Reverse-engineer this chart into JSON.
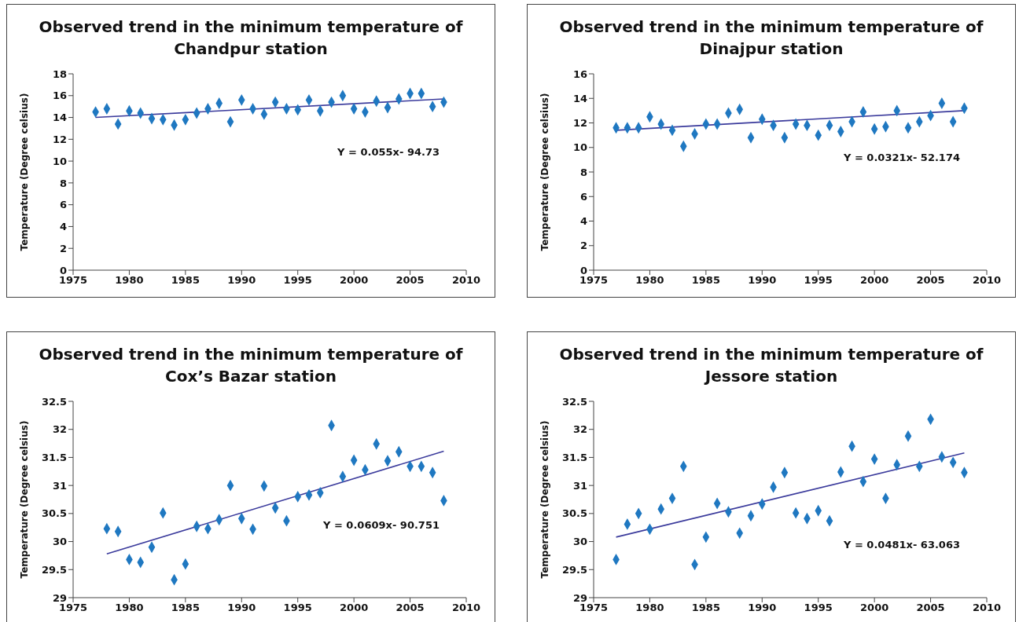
{
  "chart_data": [
    {
      "type": "scatter",
      "title": "Observed trend in the minimum temperature of Chandpur station",
      "ylabel": "Temperature (Degree celsius)",
      "xlim": [
        1975,
        2010
      ],
      "xticks": [
        1975,
        1980,
        1985,
        1990,
        1995,
        2000,
        2005,
        2010
      ],
      "ylim": [
        0,
        18
      ],
      "yticks": [
        0,
        2,
        4,
        6,
        8,
        10,
        12,
        14,
        16,
        18
      ],
      "grid": false,
      "annotations": [
        "Y = 0.055x- 94.73"
      ],
      "series": [
        {
          "marker": "diamond",
          "color": "#1f78c1",
          "x": [
            1977,
            1978,
            1979,
            1980,
            1981,
            1982,
            1983,
            1984,
            1985,
            1986,
            1987,
            1988,
            1989,
            1990,
            1991,
            1992,
            1993,
            1994,
            1995,
            1996,
            1997,
            1998,
            1999,
            2000,
            2001,
            2002,
            2003,
            2004,
            2005,
            2006,
            2007,
            2008
          ],
          "values": [
            14.5,
            14.8,
            13.4,
            14.6,
            14.4,
            13.9,
            13.8,
            13.3,
            13.8,
            14.4,
            14.8,
            15.3,
            13.6,
            15.6,
            14.8,
            14.3,
            15.4,
            14.8,
            14.7,
            15.6,
            14.6,
            15.4,
            16.0,
            14.8,
            14.5,
            15.5,
            14.9,
            15.7,
            16.2,
            16.2,
            15.0,
            15.4
          ]
        },
        {
          "type": "line",
          "marker": "none",
          "color": "#3b3b9c",
          "x": [
            1977,
            2008
          ],
          "values": [
            14.0,
            15.7
          ]
        }
      ]
    },
    {
      "type": "scatter",
      "title": "Observed trend in the minimum temperature of Dinajpur station",
      "ylabel": "Temperature (Degree celsius)",
      "xlim": [
        1975,
        2010
      ],
      "xticks": [
        1975,
        1980,
        1985,
        1990,
        1995,
        2000,
        2005,
        2010
      ],
      "ylim": [
        0,
        16
      ],
      "yticks": [
        0,
        2,
        4,
        6,
        8,
        10,
        12,
        14,
        16
      ],
      "grid": false,
      "annotations": [
        "Y = 0.0321x- 52.174"
      ],
      "series": [
        {
          "marker": "diamond",
          "color": "#1f78c1",
          "x": [
            1977,
            1978,
            1979,
            1980,
            1981,
            1982,
            1983,
            1984,
            1985,
            1986,
            1987,
            1988,
            1989,
            1990,
            1991,
            1992,
            1993,
            1994,
            1995,
            1996,
            1997,
            1998,
            1999,
            2000,
            2001,
            2002,
            2003,
            2004,
            2005,
            2006,
            2007,
            2008
          ],
          "values": [
            11.6,
            11.6,
            11.6,
            12.5,
            11.9,
            11.4,
            10.1,
            11.1,
            11.9,
            11.9,
            12.8,
            13.1,
            10.8,
            12.3,
            11.8,
            10.8,
            11.9,
            11.8,
            11.0,
            11.8,
            11.3,
            12.1,
            12.9,
            11.5,
            11.7,
            13.0,
            11.6,
            12.1,
            12.6,
            13.6,
            12.1,
            13.2
          ]
        },
        {
          "type": "line",
          "marker": "none",
          "color": "#3b3b9c",
          "x": [
            1977,
            2008
          ],
          "values": [
            11.4,
            13.0
          ]
        }
      ]
    },
    {
      "type": "scatter",
      "title": "Observed trend in the minimum temperature of Cox’s Bazar station",
      "ylabel": "Temperature (Degree celsius)",
      "xlim": [
        1975,
        2010
      ],
      "xticks": [
        1975,
        1980,
        1985,
        1990,
        1995,
        2000,
        2005,
        2010
      ],
      "ylim": [
        29,
        32.5
      ],
      "yticks": [
        29,
        29.5,
        30,
        30.5,
        31,
        31.5,
        32,
        32.5
      ],
      "grid": false,
      "annotations": [
        "Y = 0.0609x- 90.751"
      ],
      "series": [
        {
          "marker": "diamond",
          "color": "#1f78c1",
          "x": [
            1978,
            1979,
            1980,
            1981,
            1982,
            1983,
            1984,
            1985,
            1986,
            1987,
            1988,
            1989,
            1990,
            1991,
            1992,
            1993,
            1994,
            1995,
            1996,
            1997,
            1998,
            1999,
            2000,
            2001,
            2002,
            2003,
            2004,
            2005,
            2006,
            2007,
            2008
          ],
          "values": [
            30.23,
            30.18,
            29.68,
            29.63,
            29.9,
            30.51,
            29.32,
            29.6,
            30.27,
            30.23,
            30.39,
            31.0,
            30.41,
            30.22,
            30.99,
            30.6,
            30.37,
            30.8,
            30.83,
            30.87,
            32.07,
            31.16,
            31.45,
            31.28,
            31.74,
            31.44,
            31.6,
            31.34,
            31.34,
            31.23,
            30.73
          ]
        },
        {
          "type": "line",
          "marker": "none",
          "color": "#3b3b9c",
          "x": [
            1978,
            2008
          ],
          "values": [
            29.78,
            31.61
          ]
        }
      ]
    },
    {
      "type": "scatter",
      "title": "Observed trend in the minimum temperature of Jessore station",
      "ylabel": "Temperature (Degree celsius)",
      "xlim": [
        1975,
        2010
      ],
      "xticks": [
        1975,
        1980,
        1985,
        1990,
        1995,
        2000,
        2005,
        2010
      ],
      "ylim": [
        29,
        32.5
      ],
      "yticks": [
        29,
        29.5,
        30,
        30.5,
        31,
        31.5,
        32,
        32.5
      ],
      "grid": false,
      "annotations": [
        "Y = 0.0481x- 63.063"
      ],
      "series": [
        {
          "marker": "diamond",
          "color": "#1f78c1",
          "x": [
            1977,
            1978,
            1979,
            1980,
            1981,
            1982,
            1983,
            1984,
            1985,
            1986,
            1987,
            1988,
            1989,
            1990,
            1991,
            1992,
            1993,
            1994,
            1995,
            1996,
            1997,
            1998,
            1999,
            2000,
            2001,
            2002,
            2003,
            2004,
            2005,
            2006,
            2007,
            2008
          ],
          "values": [
            29.68,
            30.31,
            30.5,
            30.22,
            30.58,
            30.77,
            31.34,
            29.59,
            30.08,
            30.68,
            30.53,
            30.15,
            30.46,
            30.67,
            30.97,
            31.23,
            30.51,
            30.41,
            30.55,
            30.37,
            31.24,
            31.7,
            31.07,
            31.47,
            30.77,
            31.37,
            31.88,
            31.34,
            32.18,
            31.51,
            31.41,
            31.23
          ]
        },
        {
          "type": "line",
          "marker": "none",
          "color": "#3b3b9c",
          "x": [
            1977,
            2008
          ],
          "values": [
            30.08,
            31.58
          ]
        }
      ]
    }
  ]
}
